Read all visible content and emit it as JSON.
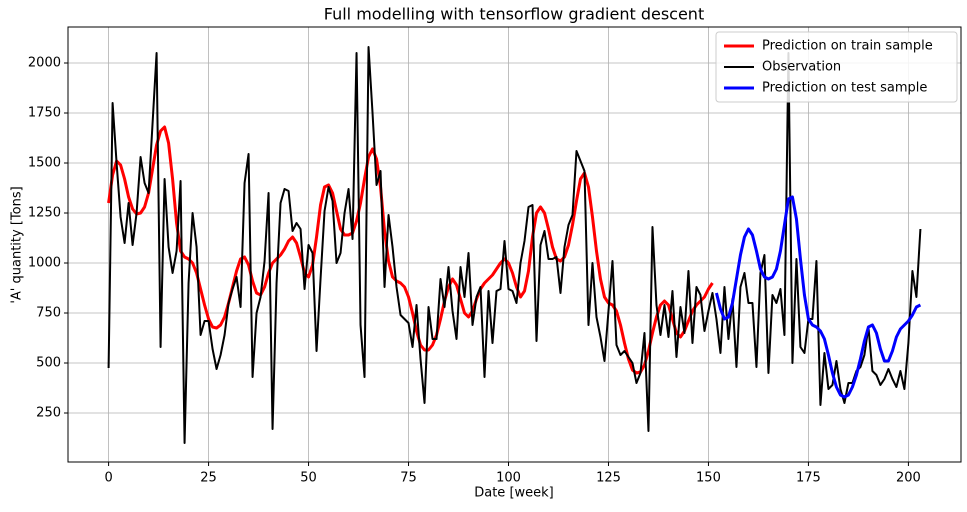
{
  "chart_data": {
    "type": "line",
    "title": "Full modelling with tensorflow gradient descent",
    "x_label": "Date [week]",
    "y_label": "'A' quantity [Tons]",
    "xlim": [
      -10.15,
      213.15
    ],
    "ylim": [
      5,
      2180
    ],
    "xticks": [
      0,
      25,
      50,
      75,
      100,
      125,
      150,
      175,
      200
    ],
    "yticks": [
      250,
      500,
      750,
      1000,
      1250,
      1500,
      1750,
      2000
    ],
    "grid": true,
    "legend": "upper right",
    "x": [
      0,
      1,
      2,
      3,
      4,
      5,
      6,
      7,
      8,
      9,
      10,
      11,
      12,
      13,
      14,
      15,
      16,
      17,
      18,
      19,
      20,
      21,
      22,
      23,
      24,
      25,
      26,
      27,
      28,
      29,
      30,
      31,
      32,
      33,
      34,
      35,
      36,
      37,
      38,
      39,
      40,
      41,
      42,
      43,
      44,
      45,
      46,
      47,
      48,
      49,
      50,
      51,
      52,
      53,
      54,
      55,
      56,
      57,
      58,
      59,
      60,
      61,
      62,
      63,
      64,
      65,
      66,
      67,
      68,
      69,
      70,
      71,
      72,
      73,
      74,
      75,
      76,
      77,
      78,
      79,
      80,
      81,
      82,
      83,
      84,
      85,
      86,
      87,
      88,
      89,
      90,
      91,
      92,
      93,
      94,
      95,
      96,
      97,
      98,
      99,
      100,
      101,
      102,
      103,
      104,
      105,
      106,
      107,
      108,
      109,
      110,
      111,
      112,
      113,
      114,
      115,
      116,
      117,
      118,
      119,
      120,
      121,
      122,
      123,
      124,
      125,
      126,
      127,
      128,
      129,
      130,
      131,
      132,
      133,
      134,
      135,
      136,
      137,
      138,
      139,
      140,
      141,
      142,
      143,
      144,
      145,
      146,
      147,
      148,
      149,
      150,
      151,
      152,
      153,
      154,
      155,
      156,
      157,
      158,
      159,
      160,
      161,
      162,
      163,
      164,
      165,
      166,
      167,
      168,
      169,
      170,
      171,
      172,
      173,
      174,
      175,
      176,
      177,
      178,
      179,
      180,
      181,
      182,
      183,
      184,
      185,
      186,
      187,
      188,
      189,
      190,
      191,
      192,
      193,
      194,
      195,
      196,
      197,
      198,
      199,
      200,
      201,
      202,
      203
    ],
    "series": [
      {
        "name": "Prediction on train sample",
        "color": "#ff0000",
        "width": 3,
        "values": [
          1300,
          1440,
          1510,
          1490,
          1420,
          1330,
          1270,
          1245,
          1250,
          1280,
          1350,
          1470,
          1590,
          1660,
          1680,
          1600,
          1420,
          1200,
          1060,
          1030,
          1020,
          1000,
          950,
          870,
          790,
          720,
          680,
          675,
          690,
          730,
          800,
          880,
          960,
          1020,
          1030,
          990,
          910,
          850,
          840,
          880,
          950,
          1000,
          1020,
          1040,
          1070,
          1110,
          1130,
          1100,
          1030,
          950,
          930,
          990,
          1130,
          1290,
          1380,
          1390,
          1350,
          1260,
          1170,
          1140,
          1140,
          1150,
          1210,
          1300,
          1420,
          1530,
          1570,
          1520,
          1380,
          1160,
          1010,
          930,
          910,
          900,
          880,
          830,
          750,
          660,
          590,
          565,
          565,
          590,
          640,
          720,
          810,
          880,
          920,
          890,
          820,
          750,
          730,
          760,
          820,
          870,
          900,
          920,
          940,
          970,
          1000,
          1020,
          1000,
          950,
          880,
          830,
          860,
          960,
          1130,
          1250,
          1280,
          1250,
          1170,
          1080,
          1020,
          1010,
          1030,
          1090,
          1190,
          1310,
          1420,
          1450,
          1380,
          1230,
          1060,
          920,
          830,
          800,
          790,
          760,
          690,
          600,
          520,
          465,
          450,
          455,
          490,
          560,
          650,
          730,
          790,
          810,
          790,
          720,
          650,
          630,
          660,
          710,
          760,
          790,
          810,
          830,
          870,
          900,
          null,
          null,
          null,
          null,
          null,
          null,
          null,
          null,
          null,
          null,
          null,
          null,
          null,
          null,
          null,
          null,
          null,
          null,
          null,
          null,
          null,
          null,
          null,
          null,
          null,
          null,
          null,
          null,
          null,
          null,
          null,
          null,
          null,
          null,
          null,
          null,
          null,
          null,
          null,
          null,
          null,
          null,
          null,
          null,
          null,
          null,
          null,
          null,
          null,
          null,
          null,
          null
        ]
      },
      {
        "name": "Observation",
        "color": "#000000",
        "width": 2,
        "values": [
          475,
          1800,
          1500,
          1230,
          1100,
          1300,
          1090,
          1250,
          1530,
          1400,
          1350,
          1700,
          2050,
          580,
          1420,
          1080,
          950,
          1060,
          1410,
          100,
          900,
          1250,
          1080,
          640,
          710,
          710,
          570,
          470,
          540,
          640,
          800,
          870,
          930,
          780,
          1400,
          1545,
          430,
          750,
          830,
          1010,
          1350,
          170,
          900,
          1300,
          1370,
          1360,
          1160,
          1200,
          1170,
          870,
          1090,
          1050,
          560,
          920,
          1260,
          1380,
          1310,
          1000,
          1050,
          1250,
          1370,
          1120,
          2050,
          690,
          430,
          2080,
          1750,
          1390,
          1460,
          880,
          1240,
          1080,
          880,
          740,
          720,
          700,
          580,
          790,
          520,
          300,
          780,
          620,
          620,
          920,
          780,
          980,
          760,
          620,
          980,
          830,
          1050,
          690,
          830,
          880,
          430,
          860,
          600,
          860,
          870,
          1110,
          870,
          860,
          800,
          1000,
          1110,
          1280,
          1290,
          610,
          1090,
          1160,
          1020,
          1020,
          1030,
          850,
          1080,
          1190,
          1240,
          1560,
          1510,
          1460,
          690,
          1000,
          730,
          630,
          510,
          760,
          1010,
          590,
          540,
          560,
          530,
          500,
          400,
          450,
          650,
          160,
          1180,
          790,
          640,
          790,
          630,
          860,
          530,
          780,
          650,
          960,
          600,
          880,
          840,
          660,
          760,
          850,
          720,
          550,
          880,
          620,
          820,
          480,
          880,
          950,
          800,
          800,
          480,
          950,
          1040,
          450,
          840,
          800,
          870,
          640,
          2050,
          500,
          1020,
          580,
          550,
          720,
          720,
          1010,
          290,
          550,
          370,
          390,
          510,
          370,
          300,
          400,
          400,
          460,
          480,
          540,
          680,
          460,
          440,
          390,
          420,
          470,
          420,
          380,
          460,
          370,
          600,
          960,
          830,
          1170
        ]
      },
      {
        "name": "Prediction on test sample",
        "color": "#0000ff",
        "width": 3,
        "values": [
          null,
          null,
          null,
          null,
          null,
          null,
          null,
          null,
          null,
          null,
          null,
          null,
          null,
          null,
          null,
          null,
          null,
          null,
          null,
          null,
          null,
          null,
          null,
          null,
          null,
          null,
          null,
          null,
          null,
          null,
          null,
          null,
          null,
          null,
          null,
          null,
          null,
          null,
          null,
          null,
          null,
          null,
          null,
          null,
          null,
          null,
          null,
          null,
          null,
          null,
          null,
          null,
          null,
          null,
          null,
          null,
          null,
          null,
          null,
          null,
          null,
          null,
          null,
          null,
          null,
          null,
          null,
          null,
          null,
          null,
          null,
          null,
          null,
          null,
          null,
          null,
          null,
          null,
          null,
          null,
          null,
          null,
          null,
          null,
          null,
          null,
          null,
          null,
          null,
          null,
          null,
          null,
          null,
          null,
          null,
          null,
          null,
          null,
          null,
          null,
          null,
          null,
          null,
          null,
          null,
          null,
          null,
          null,
          null,
          null,
          null,
          null,
          null,
          null,
          null,
          null,
          null,
          null,
          null,
          null,
          null,
          null,
          null,
          null,
          null,
          null,
          null,
          null,
          null,
          null,
          null,
          null,
          null,
          null,
          null,
          null,
          null,
          null,
          null,
          null,
          null,
          null,
          null,
          null,
          null,
          null,
          null,
          null,
          null,
          null,
          null,
          null,
          850,
          770,
          720,
          730,
          800,
          920,
          1040,
          1130,
          1170,
          1140,
          1060,
          970,
          930,
          920,
          930,
          970,
          1060,
          1190,
          1320,
          1330,
          1220,
          1020,
          840,
          720,
          690,
          680,
          660,
          620,
          540,
          450,
          380,
          340,
          330,
          340,
          380,
          440,
          520,
          610,
          680,
          690,
          650,
          570,
          510,
          510,
          560,
          630,
          670,
          690,
          710,
          740,
          780,
          790
        ]
      }
    ]
  }
}
